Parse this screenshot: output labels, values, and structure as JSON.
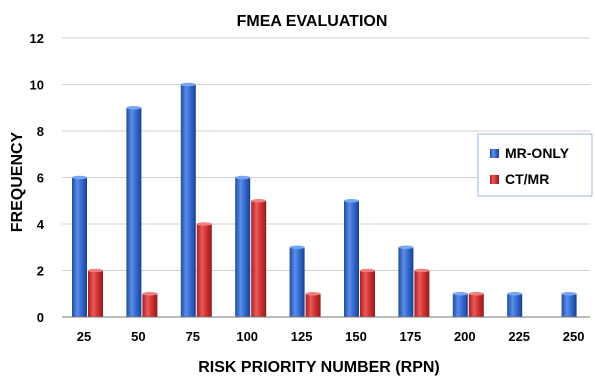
{
  "chart_data": {
    "type": "bar",
    "title": "FMEA EVALUATION",
    "xlabel": "RISK PRIORITY NUMBER (RPN)",
    "ylabel": "FREQUENCY",
    "categories": [
      "25",
      "50",
      "75",
      "100",
      "125",
      "150",
      "175",
      "200",
      "225",
      "250"
    ],
    "yticks": [
      "0",
      "2",
      "4",
      "6",
      "8",
      "10",
      "12"
    ],
    "ylim": [
      0,
      12
    ],
    "grid": true,
    "legend_position": "right",
    "series": [
      {
        "name": "MR-ONLY",
        "color": "#2e64c8",
        "values": [
          6,
          9,
          10,
          6,
          3,
          5,
          3,
          1,
          1,
          1
        ]
      },
      {
        "name": "CT/MR",
        "color": "#d02f2f",
        "values": [
          2,
          1,
          4,
          5,
          1,
          2,
          2,
          1,
          0,
          0
        ]
      }
    ]
  }
}
